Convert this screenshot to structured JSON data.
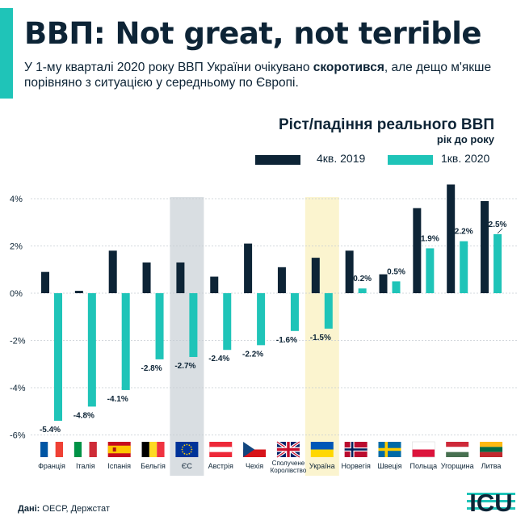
{
  "header": {
    "title": "ВВП: Not great, not terrible",
    "subtitle_part1": "У 1-му кварталі 2020 року ВВП України очікувано ",
    "subtitle_bold": "скоротився",
    "subtitle_part2": ", але дещо м'якше порівняно з ситуацією у середньому по Європі."
  },
  "source": {
    "label": "Дані:",
    "text": " ОЕСР, Держстат"
  },
  "logo": {
    "text": "ICU"
  },
  "colors": {
    "dark": "#0d2436",
    "teal": "#1fc4b8",
    "eu_highlight": "#d9dee2",
    "ukraine_highlight": "#fbf4cf"
  },
  "chart_data": {
    "type": "bar",
    "title": "Ріст/падіння реального ВВП",
    "subtitle": "рік до року",
    "legend_position": "top-right",
    "ylim": [
      -6,
      5
    ],
    "yticks": [
      "4%",
      "2%",
      "0%",
      "-2%",
      "-4%",
      "-6%"
    ],
    "grid": true,
    "categories": [
      "Франція",
      "Італія",
      "Іспанія",
      "Бельгія",
      "ЄС",
      "Австрія",
      "Чехія",
      "Сполучене Королівство",
      "Україна",
      "Норвегія",
      "Швеція",
      "Польща",
      "Угорщина",
      "Литва"
    ],
    "highlighted": [
      "ЄС",
      "Україна"
    ],
    "series": [
      {
        "name": "4кв. 2019",
        "color": "#0d2436",
        "values": [
          0.9,
          0.1,
          1.8,
          1.3,
          1.3,
          0.7,
          2.1,
          1.1,
          1.5,
          1.8,
          0.8,
          3.6,
          4.6,
          3.9
        ]
      },
      {
        "name": "1кв. 2020",
        "color": "#1fc4b8",
        "values": [
          -5.4,
          -4.8,
          -4.1,
          -2.8,
          -2.7,
          -2.4,
          -2.2,
          -1.6,
          -1.5,
          0.2,
          0.5,
          1.9,
          2.2,
          2.5
        ],
        "labels": [
          "-5.4%",
          "-4.8%",
          "-4.1%",
          "-2.8%",
          "-2.7%",
          "-2.4%",
          "-2.2%",
          "-1.6%",
          "-1.5%",
          "0.2%",
          "0.5%",
          "1.9%",
          "2.2%",
          "2.5%"
        ]
      }
    ],
    "flags": [
      "france-flag",
      "italy-flag",
      "spain-flag",
      "belgium-flag",
      "eu-flag",
      "austria-flag",
      "czech-flag",
      "uk-flag",
      "ukraine-flag",
      "norway-flag",
      "sweden-flag",
      "poland-flag",
      "hungary-flag",
      "lithuania-flag"
    ]
  }
}
